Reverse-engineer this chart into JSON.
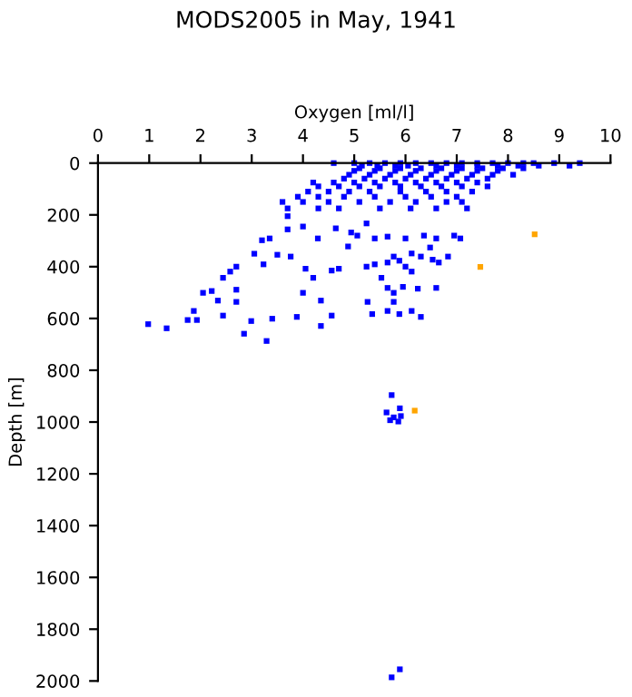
{
  "chart_data": {
    "type": "scatter",
    "title": "MODS2005 in May, 1941",
    "xlabel": "Oxygen [ml/l]",
    "ylabel": "Depth [m]",
    "xlim": [
      0,
      10
    ],
    "xticks": [
      0,
      1,
      2,
      3,
      4,
      5,
      6,
      7,
      8,
      9,
      10
    ],
    "ylim": [
      2000,
      0
    ],
    "yticks": [
      0,
      200,
      400,
      600,
      800,
      1000,
      1200,
      1400,
      1600,
      1800,
      2000
    ],
    "marker": "square",
    "grid": false,
    "series": [
      {
        "color": "#0000ff",
        "x": [
          4.6,
          5.0,
          5.3,
          5.6,
          5.9,
          6.2,
          6.5,
          6.8,
          7.1,
          7.4,
          7.7,
          8.0,
          8.3,
          8.5,
          8.9,
          9.4,
          5.15,
          5.45,
          5.8,
          6.05,
          6.6,
          7.0,
          7.4,
          7.8,
          8.2,
          8.6,
          9.2,
          5.1,
          5.5,
          5.9,
          6.3,
          6.7,
          7.1,
          7.5,
          7.9,
          8.3,
          5.0,
          5.4,
          5.8,
          6.2,
          6.6,
          7.0,
          7.4,
          7.8,
          4.9,
          5.3,
          5.7,
          6.1,
          6.5,
          6.9,
          7.3,
          7.7,
          8.1,
          4.8,
          5.2,
          5.6,
          6.0,
          6.4,
          6.8,
          7.2,
          7.6,
          4.2,
          4.6,
          5.0,
          5.4,
          5.8,
          6.2,
          6.6,
          7.0,
          7.4,
          4.3,
          4.7,
          5.1,
          5.5,
          5.9,
          6.3,
          6.7,
          7.1,
          7.6,
          4.1,
          4.5,
          4.9,
          5.3,
          5.9,
          6.4,
          6.8,
          7.3,
          3.9,
          4.3,
          4.8,
          5.4,
          6.0,
          6.5,
          7.0,
          3.6,
          4.0,
          4.5,
          5.1,
          5.7,
          6.2,
          6.8,
          7.1,
          3.7,
          4.3,
          4.7,
          5.5,
          6.1,
          6.6,
          7.2,
          3.7,
          4.0,
          3.7,
          3.35,
          3.2,
          3.05,
          3.5,
          3.76,
          3.23,
          2.7,
          2.58,
          2.44,
          2.22,
          2.05,
          2.34,
          2.7,
          2.7,
          1.87,
          1.75,
          1.93,
          0.98,
          1.34,
          2.44,
          2.85,
          3.29,
          2.99,
          3.4,
          3.88,
          4.35,
          4.56,
          4.35,
          4.0,
          4.2,
          4.05,
          4.56,
          4.7,
          4.29,
          4.64,
          4.94,
          4.88,
          5.06,
          5.24,
          5.4,
          5.65,
          6.0,
          6.36,
          6.6,
          6.95,
          7.07,
          6.48,
          6.12,
          5.77,
          5.65,
          5.24,
          5.4,
          5.88,
          6.3,
          6.53,
          6.83,
          6.65,
          6.0,
          6.12,
          5.53,
          5.65,
          5.95,
          6.24,
          6.6,
          5.77,
          5.26,
          5.35,
          5.65,
          5.88,
          6.12,
          6.3,
          5.77,
          5.73,
          5.63,
          5.77,
          5.89,
          5.86,
          5.7,
          5.91,
          5.73,
          5.89
        ],
        "values": [
          0,
          0,
          0,
          0,
          0,
          0,
          0,
          0,
          0,
          0,
          0,
          0,
          0,
          0,
          0,
          0,
          10,
          10,
          10,
          10,
          10,
          10,
          10,
          10,
          10,
          10,
          10,
          20,
          20,
          20,
          20,
          20,
          20,
          20,
          20,
          20,
          30,
          30,
          30,
          30,
          30,
          30,
          30,
          30,
          45,
          45,
          45,
          45,
          45,
          45,
          45,
          45,
          45,
          60,
          60,
          60,
          60,
          60,
          60,
          60,
          60,
          75,
          75,
          75,
          75,
          75,
          75,
          75,
          75,
          75,
          90,
          90,
          90,
          90,
          90,
          90,
          90,
          90,
          90,
          110,
          110,
          110,
          110,
          110,
          110,
          110,
          110,
          130,
          130,
          130,
          130,
          130,
          130,
          130,
          150,
          150,
          150,
          150,
          150,
          150,
          150,
          150,
          175,
          175,
          175,
          175,
          175,
          175,
          175,
          205,
          245,
          256,
          291,
          298,
          350,
          354,
          361,
          391,
          400,
          419,
          443,
          494,
          501,
          531,
          489,
          536,
          571,
          606,
          606,
          622,
          638,
          589,
          659,
          687,
          610,
          601,
          594,
          629,
          589,
          531,
          501,
          443,
          408,
          415,
          408,
          291,
          252,
          268,
          322,
          280,
          233,
          291,
          284,
          291,
          280,
          291,
          280,
          291,
          326,
          349,
          361,
          384,
          400,
          391,
          377,
          361,
          373,
          361,
          384,
          400,
          419,
          443,
          482,
          478,
          485,
          482,
          501,
          536,
          583,
          571,
          583,
          571,
          594,
          536,
          896,
          963,
          982,
          947,
          998,
          993,
          977,
          1986,
          1955
        ]
      },
      {
        "color": "#ffa500",
        "x": [
          8.52,
          7.46,
          6.18
        ],
        "values": [
          275,
          401,
          956
        ]
      }
    ]
  }
}
